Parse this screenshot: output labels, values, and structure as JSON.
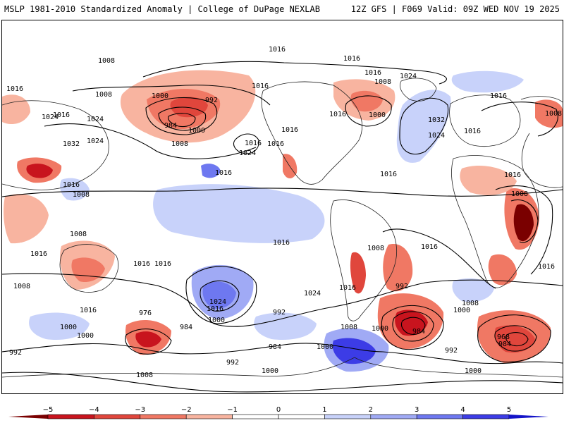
{
  "header": {
    "left_title": "MSLP 1981-2010 Standardized Anomaly | College of DuPage NEXLAB",
    "right_title": "12Z GFS | F069 Valid: 09Z WED NOV 19 2025"
  },
  "colors": {
    "neg5": "#7a0000",
    "neg4": "#c8141e",
    "neg3": "#e0463c",
    "neg2": "#f07864",
    "neg1": "#f8b4a0",
    "neutral": "#ffffff",
    "pos1": "#c8d2fa",
    "pos2": "#a0aaf5",
    "pos3": "#6e78f0",
    "pos4": "#3c3ce6",
    "pos5": "#1414c8",
    "contour": "#000000",
    "coast": "#222222"
  },
  "isobar_labels": [
    "1016",
    "1008",
    "1016",
    "1016",
    "1024",
    "1008",
    "1016",
    "1032",
    "1024",
    "1024",
    "1000",
    "992",
    "984",
    "1000",
    "1008",
    "1016",
    "1024",
    "1016",
    "1008",
    "1016",
    "1016",
    "1016",
    "1000",
    "1024",
    "1032",
    "1024",
    "1016",
    "1008",
    "1016",
    "1016",
    "1016",
    "1008",
    "1016",
    "1008",
    "1016",
    "1008",
    "1016",
    "1016",
    "1016",
    "1016",
    "1024",
    "1016",
    "1024",
    "1016",
    "992",
    "1000",
    "1008",
    "984",
    "976",
    "984",
    "1000",
    "992",
    "1008",
    "1000",
    "984",
    "1000",
    "992",
    "1008",
    "1000",
    "968",
    "984",
    "992",
    "1000",
    "1008",
    "1016",
    "1000",
    "992",
    "1008",
    "1000",
    "1016",
    "1016",
    "1016"
  ],
  "colorbar": {
    "ticks": [
      "−5",
      "−4",
      "−3",
      "−2",
      "−1",
      "0",
      "1",
      "2",
      "3",
      "4",
      "5"
    ]
  }
}
